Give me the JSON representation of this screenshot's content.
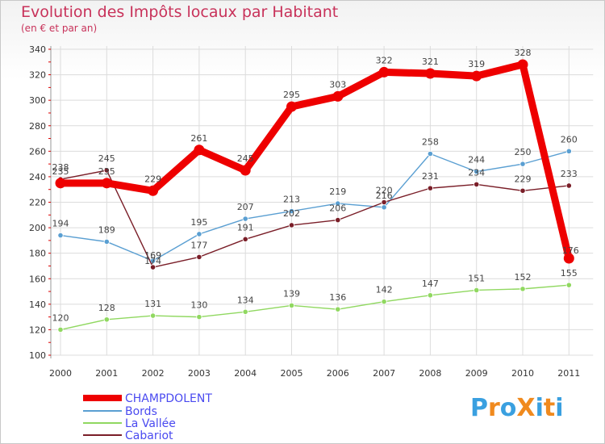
{
  "chart_data": {
    "type": "line",
    "title": "Evolution des Impôts locaux par Habitant",
    "subtitle": "(en € et par an)",
    "x": [
      "2000",
      "2001",
      "2002",
      "2003",
      "2004",
      "2005",
      "2006",
      "2007",
      "2008",
      "2009",
      "2010",
      "2011"
    ],
    "yticks": [
      "100",
      "120",
      "140",
      "160",
      "180",
      "200",
      "220",
      "240",
      "260",
      "280",
      "300",
      "320",
      "340"
    ],
    "ylim": [
      100,
      340
    ],
    "grid": true,
    "legend_position": "bottom-left",
    "series": [
      {
        "name": "CHAMPDOLENT",
        "color": "#ee0000",
        "values": [
          235,
          235,
          229,
          261,
          245,
          295,
          303,
          322,
          321,
          319,
          328,
          176
        ],
        "labels": [
          "235",
          "235",
          "229",
          "261",
          "245",
          "295",
          "303",
          "322",
          "321",
          "319",
          "328",
          "176"
        ]
      },
      {
        "name": "Bords",
        "color": "#5a9fd2",
        "values": [
          194,
          189,
          174,
          195,
          207,
          213,
          219,
          216,
          258,
          244,
          250,
          260
        ],
        "labels": [
          "194",
          "189",
          "174",
          "195",
          "207",
          "213",
          "219",
          "216",
          "258",
          "244",
          "250",
          "260"
        ]
      },
      {
        "name": "La Vallée",
        "color": "#90d860",
        "values": [
          120,
          128,
          131,
          130,
          134,
          139,
          136,
          142,
          147,
          151,
          152,
          155
        ],
        "labels": [
          "120",
          "128",
          "131",
          "130",
          "134",
          "139",
          "136",
          "142",
          "147",
          "151",
          "152",
          "155"
        ]
      },
      {
        "name": "Cabariot",
        "color": "#7a1e28",
        "values": [
          238,
          245,
          169,
          177,
          191,
          202,
          206,
          220,
          231,
          234,
          229,
          233
        ],
        "labels": [
          "238",
          "245",
          "169",
          "177",
          "191",
          "202",
          "206",
          "220",
          "231",
          "234",
          "229",
          "233"
        ]
      }
    ]
  },
  "logo": {
    "text": "ProXiti",
    "colors": [
      "#3aa0e0",
      "#f08a1e",
      "#3aa0e0",
      "#f08a1e",
      "#3aa0e0",
      "#f08a1e",
      "#3aa0e0"
    ]
  }
}
